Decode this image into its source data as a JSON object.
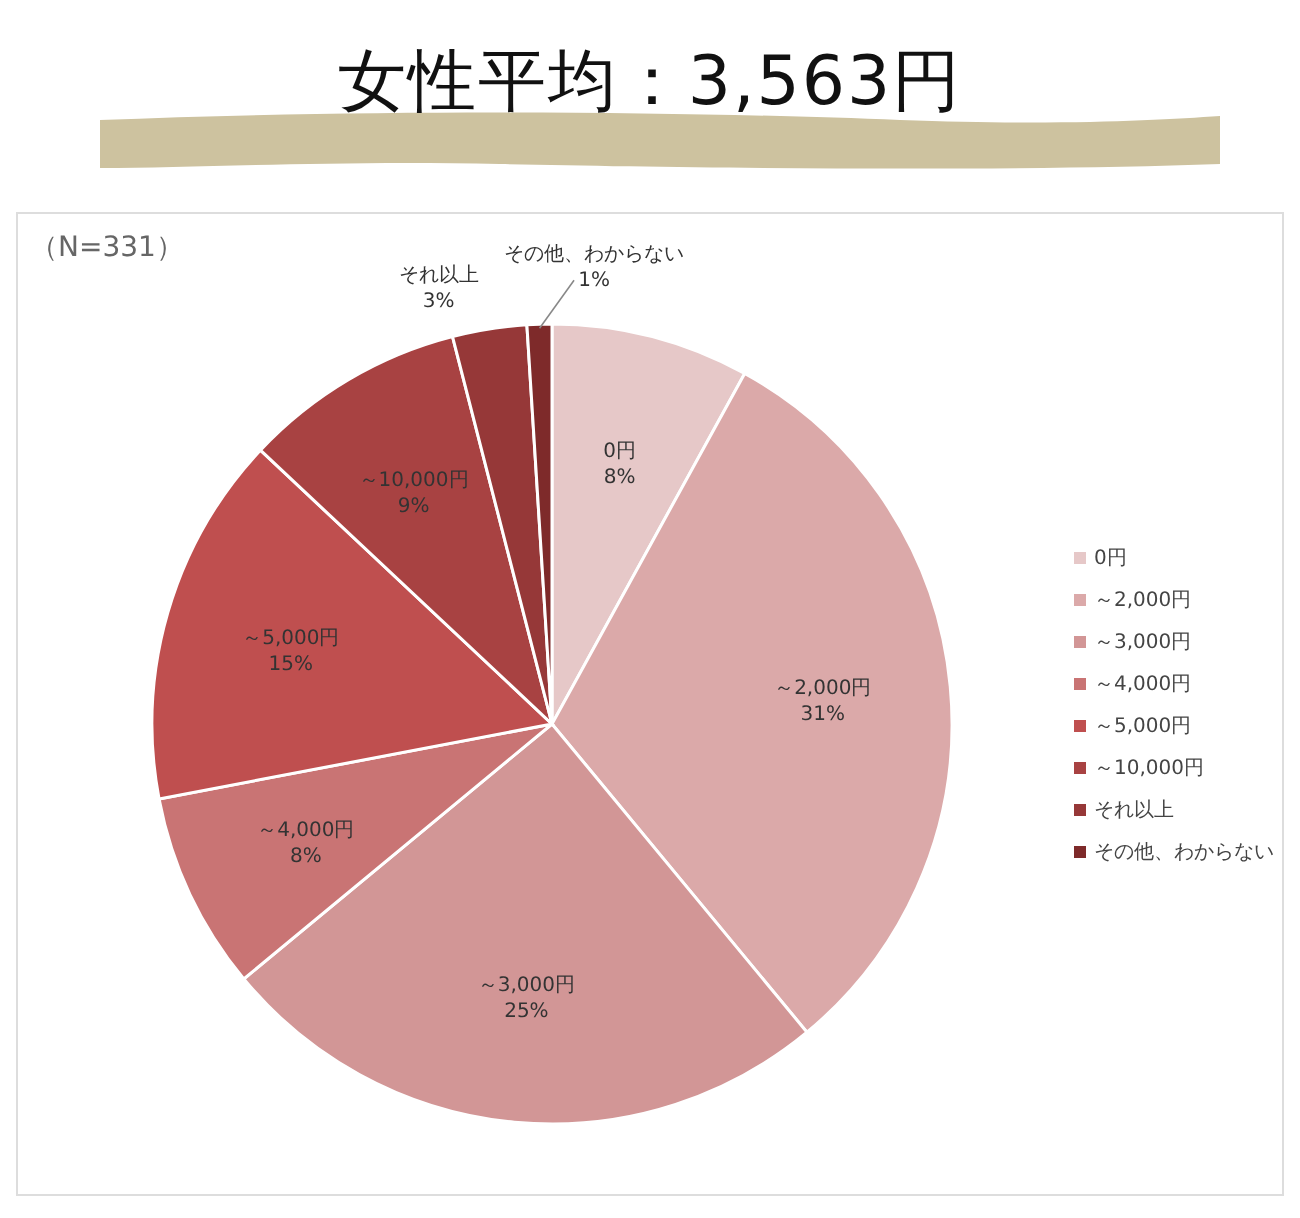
{
  "chart_data": {
    "type": "pie",
    "title": "女性平均：3,563円",
    "annotations": [
      "（N=331）"
    ],
    "categories": [
      "0円",
      "～2,000円",
      "～3,000円",
      "～4,000円",
      "～5,000円",
      "～10,000円",
      "それ以上",
      "その他、わからない"
    ],
    "values": [
      8,
      31,
      25,
      8,
      15,
      9,
      3,
      1
    ],
    "value_labels": [
      "8%",
      "31%",
      "25%",
      "8%",
      "15%",
      "9%",
      "3%",
      "1%"
    ],
    "colors": [
      "#e6c8c8",
      "#dba9a9",
      "#d29696",
      "#c97474",
      "#bf4f4f",
      "#a84242",
      "#963838",
      "#7e2a2a"
    ],
    "legend": "right"
  }
}
